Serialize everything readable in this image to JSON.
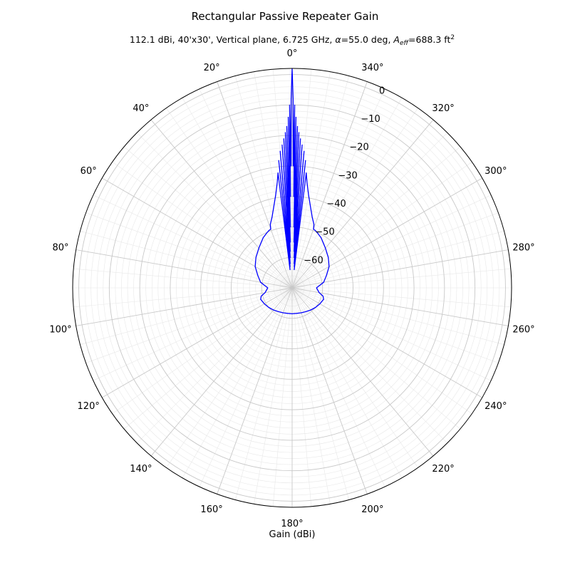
{
  "chart_data": {
    "type": "polar-line",
    "title": "Rectangular Passive Repeater Gain",
    "subtitle_parts": {
      "prefix": "112.1 dBi, 40'x30', Vertical plane, 6.725 GHz, ",
      "alpha_symbol": "α",
      "alpha_value": "=55.0 deg, ",
      "aeff_base": "A",
      "aeff_sub": "eff",
      "aeff_value": "=688.3 ft",
      "aeff_sup": "2"
    },
    "xlabel": "Gain (dBi)",
    "theta_zero_location": "top",
    "theta_direction": "counterclockwise",
    "theta_ticks_deg": [
      0,
      20,
      40,
      60,
      80,
      100,
      120,
      140,
      160,
      180,
      200,
      220,
      240,
      260,
      280,
      300,
      320,
      340
    ],
    "theta_tick_labels": [
      "0°",
      "20°",
      "40°",
      "60°",
      "80°",
      "100°",
      "120°",
      "140°",
      "160°",
      "180°",
      "200°",
      "220°",
      "240°",
      "260°",
      "280°",
      "300°",
      "320°",
      "340°"
    ],
    "r_ticks": [
      0,
      -10,
      -20,
      -30,
      -40,
      -50,
      -60
    ],
    "r_tick_labels": [
      "0",
      "−10",
      "−20",
      "−30",
      "−40",
      "−50",
      "−60"
    ],
    "r_label_angle_deg": 338,
    "rlim": [
      -70,
      2
    ],
    "grid": true,
    "minor_grid": true,
    "series": [
      {
        "color": "#0000ff",
        "points_deg_db": [
          [
            0,
            2
          ],
          [
            0.3,
            -8
          ],
          [
            0.5,
            -30
          ],
          [
            0.8,
            -10
          ],
          [
            1.0,
            -40
          ],
          [
            1.3,
            -14
          ],
          [
            1.6,
            -50
          ],
          [
            1.9,
            -17
          ],
          [
            2.2,
            -55
          ],
          [
            2.5,
            -19
          ],
          [
            2.9,
            -58
          ],
          [
            3.2,
            -21
          ],
          [
            3.6,
            -60
          ],
          [
            4.0,
            -23
          ],
          [
            4.5,
            -62
          ],
          [
            5.0,
            -25
          ],
          [
            5.5,
            -63
          ],
          [
            6.0,
            -28
          ],
          [
            6.5,
            -64
          ],
          [
            7.0,
            -32
          ],
          [
            8,
            -35
          ],
          [
            10,
            -39
          ],
          [
            13,
            -43
          ],
          [
            16,
            -46
          ],
          [
            19,
            -48
          ],
          [
            20,
            -49.5
          ],
          [
            22,
            -49.7
          ],
          [
            25,
            -50.2
          ],
          [
            30,
            -51
          ],
          [
            40,
            -53
          ],
          [
            50,
            -54.5
          ],
          [
            60,
            -56
          ],
          [
            70,
            -58
          ],
          [
            80,
            -59.5
          ],
          [
            90,
            -62
          ],
          [
            100,
            -61
          ],
          [
            105,
            -59.5
          ],
          [
            110,
            -59
          ],
          [
            120,
            -59.5
          ],
          [
            130,
            -60
          ],
          [
            140,
            -60.5
          ],
          [
            150,
            -61
          ],
          [
            160,
            -61.3
          ],
          [
            170,
            -61.5
          ],
          [
            180,
            -61.5
          ],
          [
            190,
            -61.5
          ],
          [
            200,
            -61.3
          ],
          [
            210,
            -61
          ],
          [
            220,
            -60.5
          ],
          [
            230,
            -60
          ],
          [
            240,
            -59.5
          ],
          [
            250,
            -59
          ],
          [
            255,
            -59.5
          ],
          [
            260,
            -61
          ],
          [
            270,
            -62
          ],
          [
            280,
            -59.5
          ],
          [
            290,
            -58
          ],
          [
            300,
            -56
          ],
          [
            310,
            -54.5
          ],
          [
            320,
            -53
          ],
          [
            330,
            -51
          ],
          [
            335,
            -50.2
          ],
          [
            338,
            -49.7
          ],
          [
            340,
            -49.5
          ],
          [
            341,
            -48
          ],
          [
            344,
            -46
          ],
          [
            347,
            -43
          ],
          [
            350,
            -39
          ],
          [
            352,
            -35
          ],
          [
            353,
            -32
          ],
          [
            353.5,
            -64
          ],
          [
            354,
            -28
          ],
          [
            354.5,
            -63
          ],
          [
            355,
            -25
          ],
          [
            355.5,
            -62
          ],
          [
            356,
            -23
          ],
          [
            356.4,
            -60
          ],
          [
            356.8,
            -21
          ],
          [
            357.1,
            -58
          ],
          [
            357.5,
            -19
          ],
          [
            357.8,
            -55
          ],
          [
            358.1,
            -17
          ],
          [
            358.4,
            -50
          ],
          [
            358.7,
            -14
          ],
          [
            359.0,
            -40
          ],
          [
            359.2,
            -10
          ],
          [
            359.5,
            -30
          ],
          [
            359.7,
            -8
          ],
          [
            360,
            2
          ]
        ]
      }
    ]
  }
}
